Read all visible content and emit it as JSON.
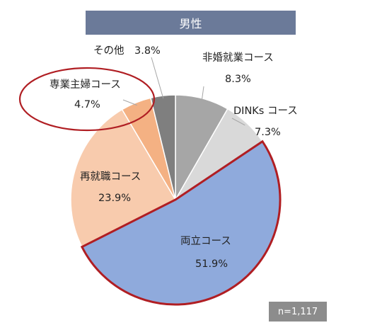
{
  "header": {
    "title": "男性"
  },
  "sample_size": "n=1,117",
  "colors": {
    "header_bg": "#6b7a99",
    "highlight_border": "#b01e23",
    "leader_line": "#a6a6a6"
  },
  "chart_data": {
    "type": "pie",
    "title": "男性",
    "start": "12 o'clock, clockwise",
    "slices": [
      {
        "label": "非婚就業コース",
        "value": 8.3,
        "value_label": "8.3%",
        "color": "#a6a6a6"
      },
      {
        "label": "DINKs コース",
        "value": 7.3,
        "value_label": "7.3%",
        "color": "#d9d9d9"
      },
      {
        "label": "両立コース",
        "value": 51.9,
        "value_label": "51.9%",
        "color": "#8faadc",
        "highlighted": true
      },
      {
        "label": "再就職コース",
        "value": 23.9,
        "value_label": "23.9%",
        "color": "#f8cbad"
      },
      {
        "label": "専業主婦コース",
        "value": 4.7,
        "value_label": "4.7%",
        "color": "#f4b183",
        "circled": true
      },
      {
        "label": "その他",
        "value": 3.8,
        "value_label": "3.8%",
        "color": "#7f7f7f"
      }
    ]
  }
}
